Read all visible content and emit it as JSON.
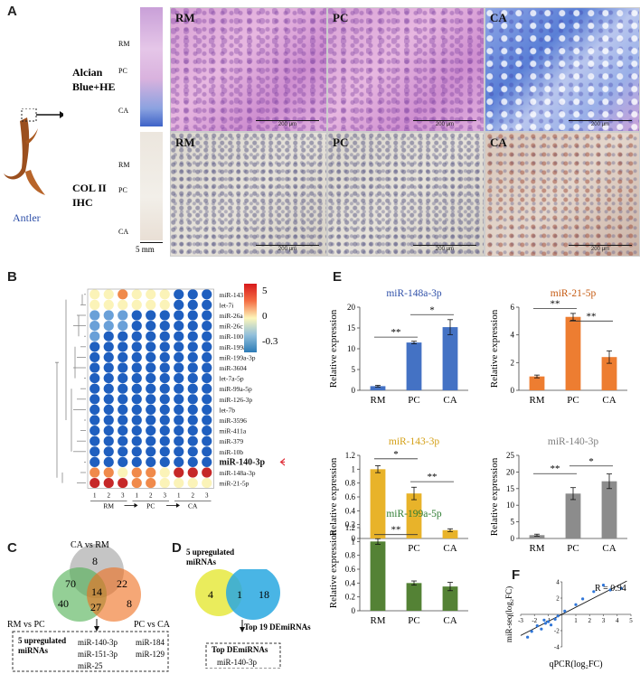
{
  "panel_a": {
    "label": "A",
    "antler_label": "Antler",
    "row1_label": [
      "Alcian",
      "Blue+HE"
    ],
    "row2_label": [
      "COL II",
      "IHC"
    ],
    "strip_labels": [
      "RM",
      "PC",
      "CA"
    ],
    "strip_scale": "5 mm",
    "columns": [
      "RM",
      "PC",
      "CA"
    ],
    "scale_bar": "200 μm"
  },
  "panel_b": {
    "label": "B",
    "mirnas": [
      "miR-143",
      "let-7i",
      "miR-26a",
      "miR-26c",
      "miR-100",
      "miR-199a-5p",
      "miR-199a-3p",
      "miR-3604",
      "let-7a-5p",
      "miR-99a-5p",
      "miR-126-3p",
      "let-7b",
      "miR-3596",
      "miR-411a",
      "miR-379",
      "miR-10b",
      "miR-140-3p",
      "miR-148a-3p",
      "miR-21-5p"
    ],
    "highlight": "miR-140-3p",
    "colorbar_ticks": [
      "5",
      "0",
      "-0.3"
    ],
    "replicates": [
      "1",
      "2",
      "3",
      "1",
      "2",
      "3",
      "1",
      "2",
      "3"
    ],
    "groups": [
      "RM",
      "PC",
      "CA"
    ],
    "colors": {
      "high": "#c62828",
      "mid": "#fbf3b8",
      "low": "#1f5fbf",
      "arrow": "#e0303a"
    }
  },
  "panel_c": {
    "label": "C",
    "sets": [
      "CA vs RM",
      "RM vs PC",
      "PC vs CA"
    ],
    "counts": [
      "8",
      "70",
      "22",
      "14",
      "40",
      "27",
      "8"
    ],
    "box_title": [
      "5 upregulated",
      "miRNAs"
    ],
    "box_items": [
      "miR-140-3p",
      "miR-184",
      "miR-151-3p",
      "miR-129",
      "miR-25"
    ]
  },
  "panel_d": {
    "label": "D",
    "left_title": [
      "5 upregulated",
      "miRNAs"
    ],
    "counts": [
      "4",
      "1",
      "18"
    ],
    "right_title": "Top 19 DEmiRNAs",
    "box_title": "Top DEmiRNAs",
    "box_item": "miR-140-3p"
  },
  "panel_e": {
    "label": "E",
    "ylabel": "Relative expression"
  },
  "panel_f": {
    "label": "F"
  },
  "chart_data": [
    {
      "type": "bar",
      "title": "miR-148a-3p",
      "title_color": "#2e4fa8",
      "categories": [
        "RM",
        "PC",
        "CA"
      ],
      "values": [
        1.0,
        11.5,
        15.2
      ],
      "errors": [
        0.2,
        0.3,
        1.8
      ],
      "ylim": [
        0,
        20
      ],
      "yticks": [
        "0",
        "5",
        "10",
        "15",
        "20"
      ],
      "color": "#4472c4",
      "ylabel": "Relative expression",
      "sig": [
        {
          "label": "**",
          "pair": "RM-PC",
          "y": 12.8
        },
        {
          "label": "*",
          "pair": "PC-CA",
          "y": 18.2
        }
      ]
    },
    {
      "type": "bar",
      "title": "miR-21-5p",
      "title_color": "#c55a11",
      "categories": [
        "RM",
        "PC",
        "CA"
      ],
      "values": [
        1.0,
        5.3,
        2.4
      ],
      "errors": [
        0.1,
        0.25,
        0.45
      ],
      "ylim": [
        0,
        6
      ],
      "yticks": [
        "0",
        "2",
        "4",
        "6"
      ],
      "color": "#ed7d31",
      "ylabel": "Relative expression",
      "sig": [
        {
          "label": "**",
          "pair": "RM-PC",
          "y": 5.9
        },
        {
          "label": "**",
          "pair": "PC-CA",
          "y": 5.0
        }
      ]
    },
    {
      "type": "bar",
      "title": "miR-143-3p",
      "title_color": "#d4a017",
      "categories": [
        "RM",
        "PC",
        "CA"
      ],
      "values": [
        1.0,
        0.65,
        0.12
      ],
      "errors": [
        0.05,
        0.09,
        0.02
      ],
      "ylim": [
        0,
        1.2
      ],
      "yticks": [
        "0",
        "0.2",
        "0.4",
        "0.6",
        "0.8",
        "1",
        "1.2"
      ],
      "color": "#e8b32a",
      "ylabel": "Relative expression",
      "sig": [
        {
          "label": "*",
          "pair": "RM-PC",
          "y": 1.15
        },
        {
          "label": "**",
          "pair": "PC-CA",
          "y": 0.82
        }
      ]
    },
    {
      "type": "bar",
      "title": "miR-140-3p",
      "title_color": "#7f7f7f",
      "categories": [
        "RM",
        "PC",
        "CA"
      ],
      "values": [
        1.0,
        13.5,
        17.2
      ],
      "errors": [
        0.3,
        1.8,
        2.2
      ],
      "ylim": [
        0,
        25
      ],
      "yticks": [
        "0",
        "5",
        "10",
        "15",
        "20",
        "25"
      ],
      "color": "#8c8c8c",
      "ylabel": "Relative expression",
      "sig": [
        {
          "label": "**",
          "pair": "RM-PC",
          "y": 19.5
        },
        {
          "label": "*",
          "pair": "PC-CA",
          "y": 21.8
        }
      ]
    },
    {
      "type": "bar",
      "title": "miR-199a-5p",
      "title_color": "#2e7d32",
      "categories": [
        "RM",
        "PC",
        "CA"
      ],
      "values": [
        1.0,
        0.4,
        0.35
      ],
      "errors": [
        0.04,
        0.03,
        0.06
      ],
      "ylim": [
        0,
        1.2
      ],
      "yticks": [
        "0",
        "0.2",
        "0.4",
        "0.6",
        "0.8",
        "1",
        "1.2"
      ],
      "color": "#548235",
      "ylabel": "Relative expression",
      "sig": [
        {
          "label": "**",
          "pair": "RM-PC",
          "y": 1.1
        }
      ]
    },
    {
      "type": "scatter",
      "annotation": "R = 0.94",
      "xlabel": "qPCR(log₂FC)",
      "ylabel": "miR-seq(log₂FC)",
      "xlim": [
        -3,
        5
      ],
      "ylim": [
        -4,
        4
      ],
      "xticks": [
        "-3",
        "-2",
        "-1",
        "0",
        "1",
        "2",
        "3",
        "4",
        "5"
      ],
      "yticks": [
        "-4",
        "-2",
        "0",
        "2",
        "4"
      ],
      "x": [
        -2.2,
        -1.8,
        -1.5,
        -1.2,
        -1.0,
        -0.8,
        -0.5,
        -0.3,
        0.2,
        1.0,
        1.5,
        2.3,
        3.0,
        3.5,
        4.3,
        -2.5,
        -1.3
      ],
      "y": [
        -2.1,
        -1.4,
        -1.8,
        -1.1,
        -0.9,
        -1.3,
        -0.6,
        -0.2,
        0.4,
        1.2,
        1.9,
        2.8,
        3.6,
        3.0,
        3.2,
        -2.8,
        -0.7
      ],
      "fit": [
        [
          -3,
          -2.6
        ],
        [
          4.7,
          4.1
        ]
      ],
      "color": "#2e75d8"
    }
  ]
}
